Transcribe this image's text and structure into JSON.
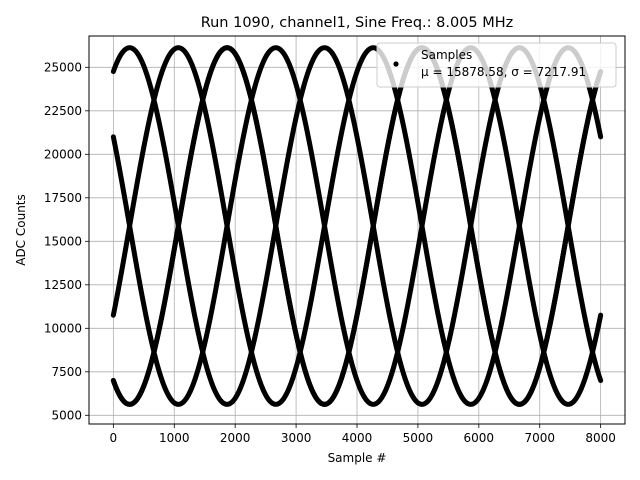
{
  "chart_data": {
    "type": "scatter",
    "title": "Run 1090, channel1, Sine Freq.: 8.005 MHz",
    "xlabel": "Sample #",
    "ylabel": "ADC Counts",
    "xlim": [
      -400,
      8400
    ],
    "ylim": [
      4500,
      26800
    ],
    "xticks": [
      0,
      1000,
      2000,
      3000,
      4000,
      5000,
      6000,
      7000,
      8000
    ],
    "yticks": [
      5000,
      7500,
      10000,
      12500,
      15000,
      17500,
      20000,
      22500,
      25000
    ],
    "grid": true,
    "legend": {
      "placement": "top-right",
      "entries": [
        "Samples",
        "μ = 15878.58, σ = 7217.91"
      ]
    },
    "series": [
      {
        "name": "Samples",
        "color": "#000000",
        "sine_mean": 15878.58,
        "sine_amplitude": 10250,
        "sine_period_samples": 3200,
        "sine_phases_deg": [
          60,
          330,
          240,
          150,
          240
        ],
        "x_range": [
          0,
          8000
        ]
      }
    ]
  }
}
